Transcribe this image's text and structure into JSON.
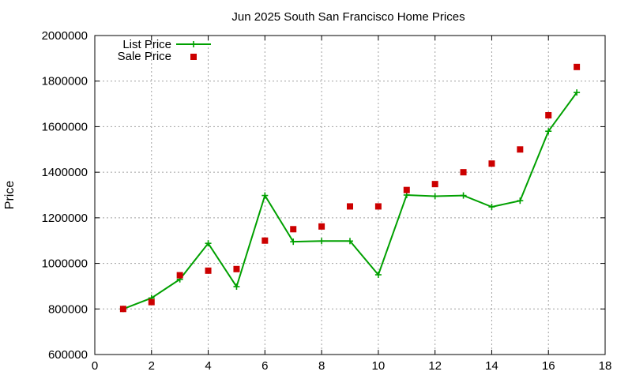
{
  "chart_data": {
    "type": "line",
    "title": "Jun 2025 South San Francisco Home Prices",
    "xlabel": "",
    "ylabel": "Price",
    "xlim": [
      0,
      18
    ],
    "ylim": [
      600000,
      2000000
    ],
    "x_ticks": [
      0,
      2,
      4,
      6,
      8,
      10,
      12,
      14,
      16,
      18
    ],
    "y_ticks": [
      600000,
      800000,
      1000000,
      1200000,
      1400000,
      1600000,
      1800000,
      2000000
    ],
    "grid": true,
    "legend_position": "top-left",
    "series": [
      {
        "name": "List Price",
        "kind": "line-points",
        "marker": "plus",
        "color": "#00a000",
        "x": [
          1,
          2,
          3,
          4,
          5,
          6,
          7,
          8,
          9,
          10,
          11,
          12,
          13,
          14,
          15,
          16,
          17
        ],
        "y": [
          800000,
          848000,
          930000,
          1088000,
          898000,
          1298000,
          1095000,
          1098000,
          1098000,
          950000,
          1300000,
          1295000,
          1298000,
          1248000,
          1275000,
          1580000,
          1750000
        ]
      },
      {
        "name": "Sale Price",
        "kind": "points",
        "marker": "square",
        "color": "#cc0000",
        "x": [
          1,
          2,
          3,
          4,
          5,
          6,
          7,
          8,
          9,
          10,
          11,
          12,
          13,
          14,
          15,
          16,
          17
        ],
        "y": [
          800000,
          830000,
          948000,
          968000,
          975000,
          1100000,
          1150000,
          1162000,
          1250000,
          1250000,
          1322000,
          1348000,
          1400000,
          1438000,
          1500000,
          1650000,
          1862000
        ]
      }
    ]
  }
}
